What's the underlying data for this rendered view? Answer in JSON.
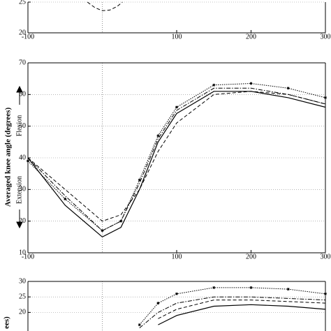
{
  "chart_data": [
    {
      "type": "line",
      "x": [
        -20,
        -10,
        0,
        10,
        20,
        27
      ],
      "series": [
        {
          "style": "dashed",
          "values": [
            25,
            24.1,
            23.6,
            23.7,
            24.3,
            25
          ]
        }
      ],
      "xlim": [
        -100,
        300
      ],
      "xticks": [
        -100,
        100,
        200,
        300
      ],
      "ylim": [
        20,
        25
      ],
      "yticks": [
        20,
        25
      ],
      "grid": true,
      "vline": 0
    },
    {
      "type": "line",
      "x": [
        -100,
        -50,
        0,
        25,
        50,
        75,
        100,
        150,
        200,
        250,
        300
      ],
      "ylabel": "Averaged knee angle (degrees)",
      "upper_label": "Flexion",
      "lower_label": "Extension",
      "series": [
        {
          "style": "solid",
          "values": [
            40,
            25,
            15,
            18,
            30,
            45,
            54,
            61,
            61,
            59,
            56
          ]
        },
        {
          "style": "dashed",
          "values": [
            40,
            30,
            20,
            22,
            30,
            42,
            51,
            60,
            61,
            60,
            57
          ]
        },
        {
          "style": "dotted-star",
          "values": [
            39,
            27,
            17,
            20,
            33,
            47,
            56,
            63,
            63.5,
            62,
            59
          ]
        },
        {
          "style": "dashdot",
          "values": [
            40,
            28,
            17,
            20,
            32,
            46,
            55,
            62,
            62,
            60,
            57
          ]
        }
      ],
      "xlim": [
        -100,
        300
      ],
      "xticks": [
        -100,
        100,
        200,
        300
      ],
      "ylim": [
        10,
        70
      ],
      "yticks": [
        10,
        20,
        30,
        40,
        50,
        60,
        70
      ],
      "grid": true,
      "vline": 0
    },
    {
      "type": "line",
      "x": [
        50,
        75,
        100,
        150,
        200,
        250,
        300
      ],
      "ylabel": "ees)",
      "series": [
        {
          "style": "dotted-star",
          "values": [
            16,
            23,
            26,
            28,
            28,
            27.5,
            26
          ]
        },
        {
          "style": "dashdot",
          "values": [
            15,
            20,
            23,
            25,
            25,
            24.5,
            24
          ]
        },
        {
          "style": "dashed",
          "values": [
            null,
            18,
            21,
            24,
            24,
            23.5,
            23
          ]
        },
        {
          "style": "solid",
          "values": [
            null,
            16,
            19,
            22,
            22.5,
            22,
            21
          ]
        }
      ],
      "xlim": [
        -100,
        300
      ],
      "ylim": [
        14,
        30
      ],
      "yticks": [
        20,
        25,
        30
      ],
      "grid": true,
      "vline": 0
    }
  ]
}
